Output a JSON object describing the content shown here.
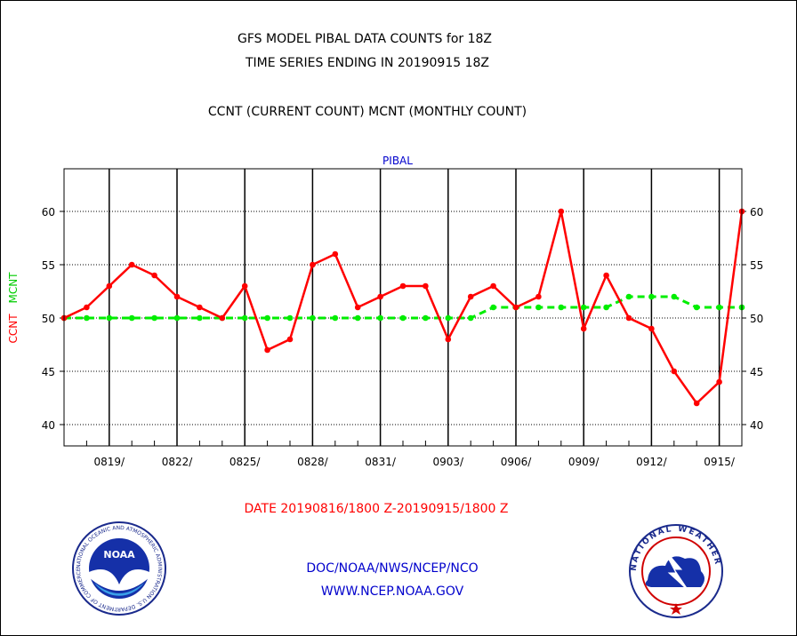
{
  "title": "GFS MODEL PIBAL DATA COUNTS for 18Z",
  "subtitle": "TIME SERIES ENDING IN 20190915 18Z",
  "legend_text": "CCNT (CURRENT COUNT) MCNT (MONTHLY COUNT)",
  "date_range": "DATE 20190816/1800 Z-20190915/1800 Z",
  "credit_line1": "DOC/NOAA/NWS/NCEP/NCO",
  "credit_line2": "WWW.NCEP.NOAA.GOV",
  "logos": {
    "noaa_label": "NOAA",
    "noaa_ring_text": "NATIONAL OCEANIC AND ATMOSPHERIC ADMINISTRATION  U.S. DEPARTMENT OF COMMERCE",
    "nws_ring_text": "NATIONAL WEATHER SERVICE"
  },
  "chart_data": {
    "type": "line",
    "title": "PIBAL",
    "ylabel_ccnt": "CCNT",
    "ylabel_mcnt": "MCNT",
    "ylim": [
      38,
      64
    ],
    "yticks": [
      40,
      45,
      50,
      55,
      60
    ],
    "x_tick_labels": [
      "0819/",
      "0822/",
      "0825/",
      "0828/",
      "0831/",
      "0903/",
      "0906/",
      "0909/",
      "0912/",
      "0915/"
    ],
    "grid": true,
    "colors": {
      "ccnt": "#ff0000",
      "mcnt": "#00ee00",
      "title": "#0000cc",
      "grid": "#000000"
    },
    "series": [
      {
        "name": "CCNT",
        "values": [
          50,
          51,
          53,
          55,
          54,
          52,
          51,
          50,
          53,
          47,
          48,
          55,
          56,
          51,
          52,
          53,
          53,
          48,
          52,
          53,
          51,
          52,
          60,
          49,
          54,
          50,
          49,
          45,
          42,
          44,
          60
        ]
      },
      {
        "name": "MCNT",
        "values": [
          50,
          50,
          50,
          50,
          50,
          50,
          50,
          50,
          50,
          50,
          50,
          50,
          50,
          50,
          50,
          50,
          50,
          50,
          50,
          51,
          51,
          51,
          51,
          51,
          51,
          52,
          52,
          52,
          51,
          51,
          51
        ]
      }
    ]
  }
}
